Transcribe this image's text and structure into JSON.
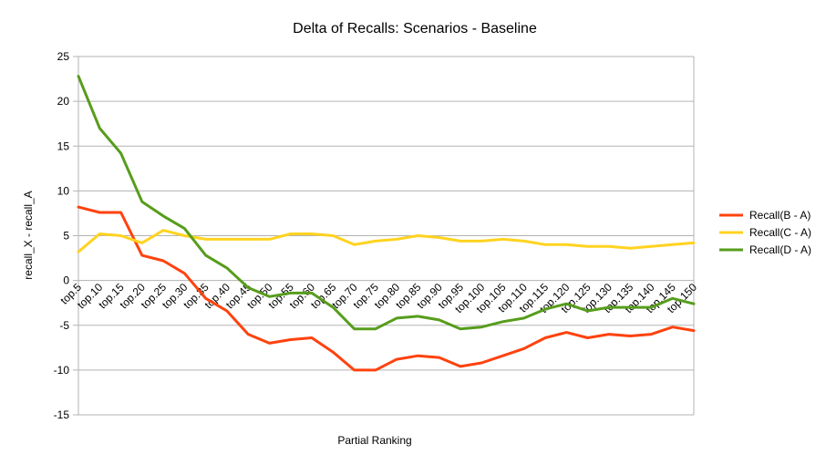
{
  "chart_data": {
    "type": "line",
    "title": "Delta of Recalls: Scenarios - Baseline",
    "xlabel": "Partial Ranking",
    "ylabel": "recall_X - recall_A",
    "ylim": [
      -15,
      25
    ],
    "yticks": [
      25,
      20,
      15,
      10,
      5,
      0,
      -5,
      -10,
      -15
    ],
    "grid": true,
    "legend_position": "right",
    "categories": [
      "top.5",
      "top.10",
      "top.15",
      "top.20",
      "top.25",
      "top.30",
      "top.35",
      "top.40",
      "top.45",
      "top.50",
      "top.55",
      "top.60",
      "top.65",
      "top.70",
      "top.75",
      "top.80",
      "top.85",
      "top.90",
      "top.95",
      "top.100",
      "top.105",
      "top.110",
      "top.115",
      "top.120",
      "top.125",
      "top.130",
      "top.135",
      "top.140",
      "top.145",
      "top.150"
    ],
    "series": [
      {
        "name": "Recall(B - A)",
        "color": "#ff420e",
        "values": [
          8.2,
          7.6,
          7.6,
          2.8,
          2.2,
          0.8,
          -2.0,
          -3.4,
          -6.0,
          -7.0,
          -6.6,
          -6.4,
          -8.0,
          -10.0,
          -10.0,
          -8.8,
          -8.4,
          -8.6,
          -9.6,
          -9.2,
          -8.4,
          -7.6,
          -6.4,
          -5.8,
          -6.4,
          -6.0,
          -6.2,
          -6.0,
          -5.2,
          -5.6
        ]
      },
      {
        "name": "Recall(C - A)",
        "color": "#ffd320",
        "values": [
          3.2,
          5.2,
          5.0,
          4.2,
          5.6,
          5.0,
          4.6,
          4.6,
          4.6,
          4.6,
          5.2,
          5.2,
          5.0,
          4.0,
          4.4,
          4.6,
          5.0,
          4.8,
          4.4,
          4.4,
          4.6,
          4.4,
          4.0,
          4.0,
          3.8,
          3.8,
          3.6,
          3.8,
          4.0,
          4.2
        ]
      },
      {
        "name": "Recall(D - A)",
        "color": "#579d1c",
        "values": [
          22.8,
          17.0,
          14.2,
          8.8,
          7.2,
          5.8,
          2.8,
          1.4,
          -0.8,
          -1.8,
          -1.4,
          -1.4,
          -3.0,
          -5.4,
          -5.4,
          -4.2,
          -4.0,
          -4.4,
          -5.4,
          -5.2,
          -4.6,
          -4.2,
          -3.2,
          -2.6,
          -3.4,
          -3.0,
          -3.0,
          -3.0,
          -2.0,
          -2.6
        ]
      }
    ]
  }
}
